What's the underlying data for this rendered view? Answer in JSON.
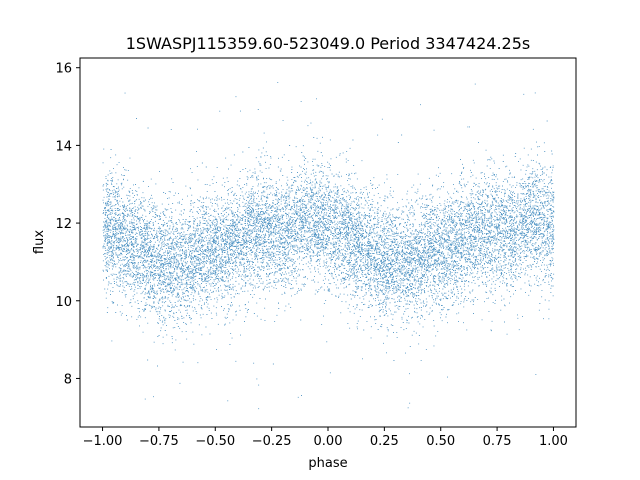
{
  "chart_data": {
    "type": "scatter",
    "title": "1SWASPJ115359.60-523049.0 Period 3347424.25s",
    "xlabel": "phase",
    "ylabel": "flux",
    "xlim": [
      -1.1,
      1.1
    ],
    "ylim": [
      6.75,
      16.25
    ],
    "xticks": [
      -1.0,
      -0.75,
      -0.5,
      -0.25,
      0.0,
      0.25,
      0.5,
      0.75,
      1.0
    ],
    "xtick_labels": [
      "−1.00",
      "−0.75",
      "−0.50",
      "−0.25",
      "0.00",
      "0.25",
      "0.50",
      "0.75",
      "1.00"
    ],
    "yticks": [
      8,
      10,
      12,
      14,
      16
    ],
    "ytick_labels": [
      "8",
      "10",
      "12",
      "14",
      "16"
    ],
    "grid": false,
    "marker_color": "#1f77b4",
    "series": [
      {
        "n_points": 14000,
        "x_range": [
          -1.0,
          1.0
        ],
        "mean_flux_profile": {
          "phase": [
            0.0,
            0.05,
            0.1,
            0.15,
            0.2,
            0.25,
            0.3,
            0.35,
            0.4,
            0.45,
            0.5,
            0.55,
            0.6,
            0.65,
            0.7,
            0.75,
            0.8,
            0.85,
            0.9,
            0.95,
            1.0
          ],
          "flux": [
            11.9,
            11.8,
            11.6,
            11.4,
            11.2,
            11.0,
            10.9,
            11.0,
            11.1,
            11.2,
            11.3,
            11.4,
            11.5,
            11.7,
            11.8,
            11.8,
            11.7,
            11.9,
            12.1,
            12.0,
            11.9
          ]
        },
        "scatter_sd": 0.75,
        "outlier_range": [
          7.2,
          15.7
        ]
      }
    ]
  }
}
